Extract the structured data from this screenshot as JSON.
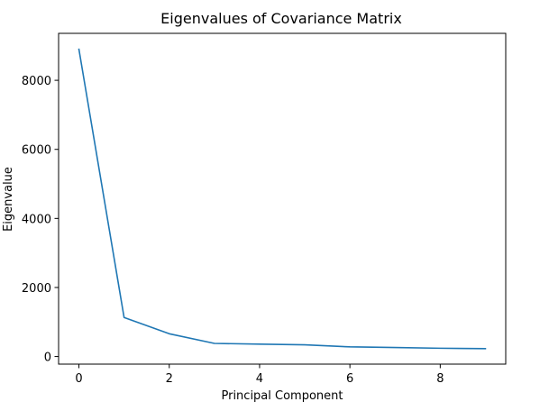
{
  "chart_data": {
    "type": "line",
    "title": "Eigenvalues of Covariance Matrix",
    "xlabel": "Principal Component",
    "ylabel": "Eigenvalue",
    "xlim": [
      -0.45,
      9.45
    ],
    "ylim": [
      -220,
      9360
    ],
    "xticks": [
      0,
      2,
      4,
      6,
      8
    ],
    "yticks": [
      0,
      2000,
      4000,
      6000,
      8000
    ],
    "grid": false,
    "legend": false,
    "series": [
      {
        "color": "#1f77b4",
        "x": [
          0,
          1,
          2,
          3,
          4,
          5,
          6,
          7,
          8,
          9
        ],
        "y": [
          8900,
          1130,
          660,
          380,
          360,
          340,
          280,
          260,
          240,
          230
        ]
      }
    ]
  }
}
